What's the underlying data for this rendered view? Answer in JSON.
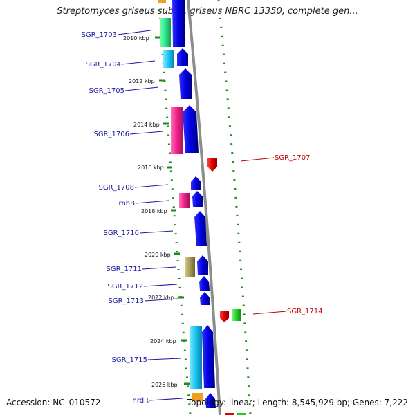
{
  "title": "Streptomyces griseus subsp. griseus NBRC 13350, complete gen...",
  "footer": {
    "accession": "Accession: NC_010572",
    "topology": "Topology: linear; Length: 8,545,929 bp; Genes: 7,222"
  },
  "ticks": [
    "2010 kbp",
    "2012 kbp",
    "2014 kbp",
    "2016 kbp",
    "2018 kbp",
    "2020 kbp",
    "2022 kbp",
    "2024 kbp",
    "2026 kbp"
  ],
  "genes_left": [
    {
      "name": "SGR_1703"
    },
    {
      "name": "SGR_1704"
    },
    {
      "name": "SGR_1705"
    },
    {
      "name": "SGR_1706"
    },
    {
      "name": "SGR_1708"
    },
    {
      "name": "rnhB"
    },
    {
      "name": "SGR_1710"
    },
    {
      "name": "SGR_1711"
    },
    {
      "name": "SGR_1712"
    },
    {
      "name": "SGR_1713"
    },
    {
      "name": "SGR_1715"
    },
    {
      "name": "nrdR"
    }
  ],
  "genes_right": [
    {
      "name": "SGR_1707"
    },
    {
      "name": "SGR_1714"
    }
  ],
  "colors": {
    "forward": "#0000e6",
    "reverse": "#ee0000",
    "cog_green": "#2ee88a",
    "cog_cyan": "#19c3f0",
    "cog_pink": "#f0208a",
    "cog_olive": "#a89a55",
    "dots": "#1a8a1a",
    "label_left": "#1a1aa0",
    "label_right": "#c00000"
  }
}
